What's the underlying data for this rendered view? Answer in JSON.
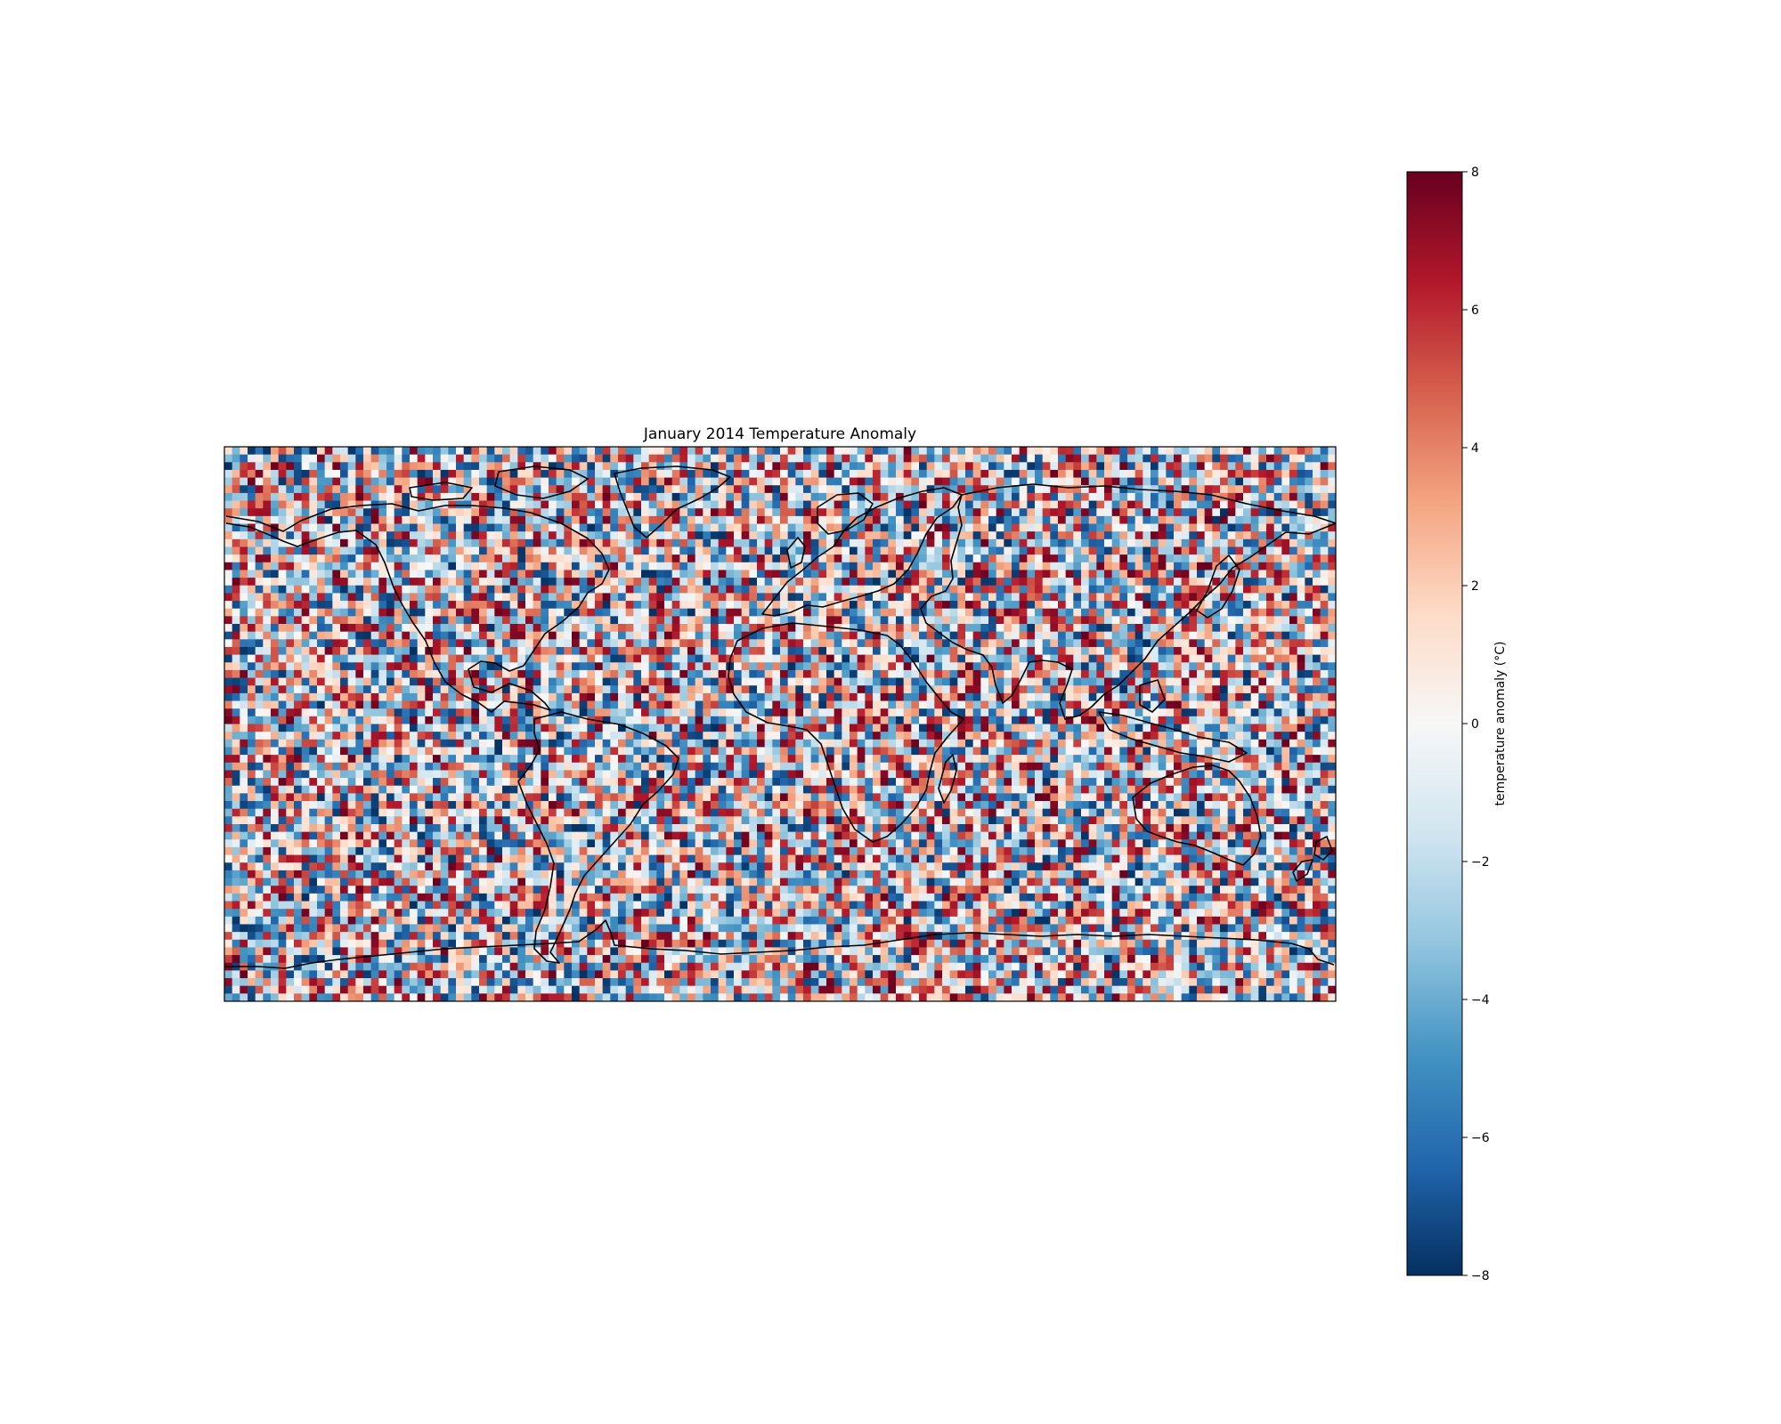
{
  "chart_data": {
    "type": "heatmap",
    "title": "January 2014 Temperature Anomaly",
    "projection": "PlateCarree (global, equirectangular)",
    "field": "random temperature anomaly grid",
    "grid": {
      "nlon": 144,
      "nlat": 72,
      "lon_range": [
        -180,
        180
      ],
      "lat_range": [
        -90,
        90
      ],
      "resolution_deg": 2.5
    },
    "value_range": [
      -8,
      8
    ],
    "colormap": "RdBu_r",
    "colormap_stops": [
      "#053061",
      "#2166ac",
      "#4393c3",
      "#92c5de",
      "#d1e5f0",
      "#f7f7f7",
      "#fddbc7",
      "#f4a582",
      "#d6604d",
      "#b2182b",
      "#67001f"
    ],
    "coastlines": true,
    "colorbar": {
      "label": "temperature anomaly (°C)",
      "orientation": "vertical",
      "ticks": [
        -8,
        -6,
        -4,
        -2,
        0,
        2,
        4,
        6,
        8
      ],
      "tick_labels": [
        "−8",
        "−6",
        "−4",
        "−2",
        "0",
        "2",
        "4",
        "6",
        "8"
      ]
    }
  }
}
